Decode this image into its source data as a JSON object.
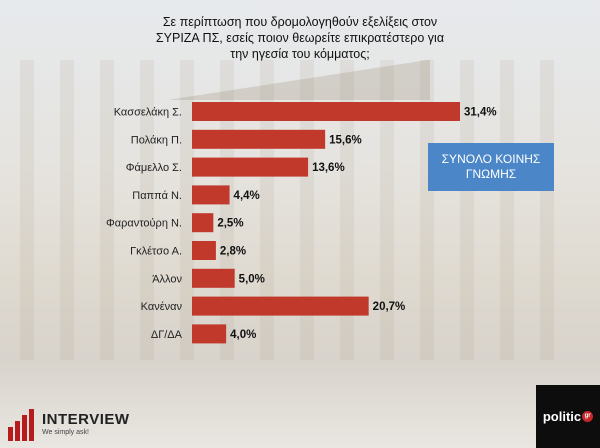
{
  "header": {
    "title_lines": [
      "Σε περίπτωση που δρομολογηθούν εξελίξεις στον",
      "ΣΥΡΙΖΑ ΠΣ, εσείς ποιον θεωρείτε επικρατέστερο για",
      "την ηγεσία του κόμματος;"
    ]
  },
  "callout": {
    "text": "ΣΥΝΟΛΟ ΚΟΙΝΗΣ ΓΝΩΜΗΣ"
  },
  "logos": {
    "interview_name": "INTERVIEW",
    "interview_tagline": "We simply ask!",
    "politic_name": "politic",
    "politic_suffix": "gr"
  },
  "chart_data": {
    "type": "bar",
    "orientation": "horizontal",
    "title": "Σε περίπτωση που δρομολογηθούν εξελίξεις στον ΣΥΡΙΖΑ ΠΣ, εσείς ποιον θεωρείτε επικρατέστερο για την ηγεσία του κόμματος;",
    "categories": [
      "Κασσελάκη Σ.",
      "Πολάκη Π.",
      "Φάμελλο Σ.",
      "Παππά Ν.",
      "Φαραντούρη Ν.",
      "Γκλέτσο Α.",
      "Άλλον",
      "Κανέναν",
      "ΔΓ/ΔΑ"
    ],
    "values": [
      31.4,
      15.6,
      13.6,
      4.4,
      2.5,
      2.8,
      5.0,
      20.7,
      4.0
    ],
    "value_labels": [
      "31,4%",
      "15,6%",
      "13,6%",
      "4,4%",
      "2,5%",
      "2,8%",
      "5,0%",
      "20,7%",
      "4,0%"
    ],
    "xlim": [
      0,
      35
    ],
    "bar_color": "#c0392b",
    "grid": false,
    "xlabel": "",
    "ylabel": ""
  }
}
